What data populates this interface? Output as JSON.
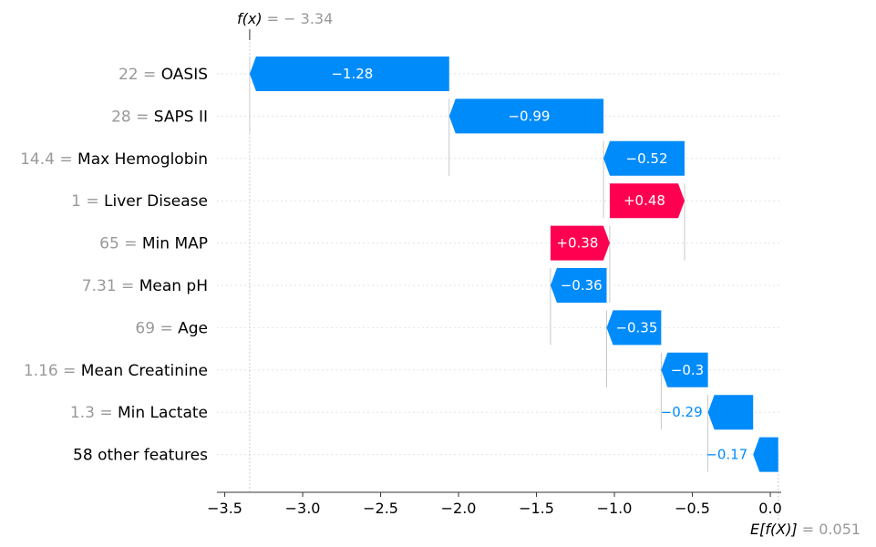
{
  "chart_data": {
    "type": "bar",
    "subtype": "waterfall",
    "title": "",
    "xlabel": "",
    "ylabel": "",
    "xlim": [
      -3.55,
      0.07
    ],
    "x_ticks": [
      -3.5,
      -3.0,
      -2.5,
      -2.0,
      -1.5,
      -1.0,
      -0.5,
      0.0
    ],
    "x_tick_labels": [
      "−3.5",
      "−3.0",
      "−2.5",
      "−2.0",
      "−1.5",
      "−1.0",
      "−0.5",
      "0.0"
    ],
    "fx": {
      "label": "f(x)",
      "eq": " = ",
      "value": -3.34,
      "value_label": "− 3.34"
    },
    "efx": {
      "label": "E[f(X)]",
      "eq": " = ",
      "value": 0.051,
      "value_label": "0.051"
    },
    "colors": {
      "positive": "#ff0051",
      "negative": "#008bfb",
      "grid": "#cccccc",
      "axis": "#333333"
    },
    "features": [
      {
        "value": "22",
        "name": "OASIS",
        "contribution": -1.28,
        "label": "−1.28",
        "start": -2.06,
        "end": -3.34
      },
      {
        "value": "28",
        "name": "SAPS II",
        "contribution": -0.99,
        "label": "−0.99",
        "start": -1.07,
        "end": -2.06
      },
      {
        "value": "14.4",
        "name": "Max Hemoglobin",
        "contribution": -0.52,
        "label": "−0.52",
        "start": -0.55,
        "end": -1.07
      },
      {
        "value": "1",
        "name": "Liver Disease",
        "contribution": 0.48,
        "label": "+0.48",
        "start": -1.03,
        "end": -0.55
      },
      {
        "value": "65",
        "name": "Min MAP",
        "contribution": 0.38,
        "label": "+0.38",
        "start": -1.41,
        "end": -1.03
      },
      {
        "value": "7.31",
        "name": "Mean pH",
        "contribution": -0.36,
        "label": "−0.36",
        "start": -1.05,
        "end": -1.41
      },
      {
        "value": "69",
        "name": "Age",
        "contribution": -0.35,
        "label": "−0.35",
        "start": -0.7,
        "end": -1.05
      },
      {
        "value": "1.16",
        "name": "Mean Creatinine",
        "contribution": -0.3,
        "label": "−0.3",
        "start": -0.4,
        "end": -0.7
      },
      {
        "value": "1.3",
        "name": "Min Lactate",
        "contribution": -0.29,
        "label": "−0.29",
        "start": -0.11,
        "end": -0.4
      },
      {
        "value": "",
        "name": "58 other features",
        "contribution": -0.17,
        "label": "−0.17",
        "start": 0.051,
        "end": -0.11
      }
    ]
  }
}
